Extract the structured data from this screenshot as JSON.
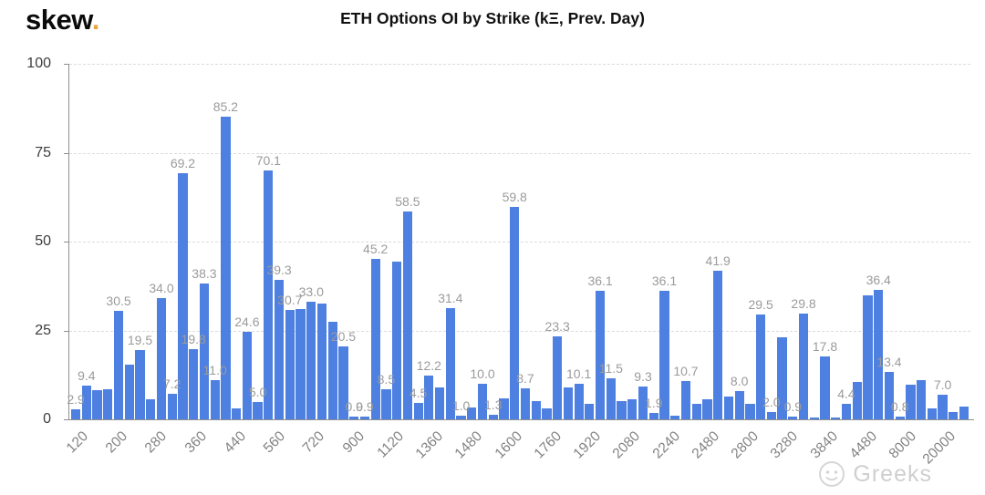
{
  "logo": {
    "brand": "skew",
    "dot": "."
  },
  "header": {
    "title": "ETH Options OI by Strike (kΞ, Prev. Day)"
  },
  "watermark": {
    "text": "Greeks",
    "icon": "face-icon"
  },
  "colors": {
    "bar": "#4e80e1",
    "grid": "#dcdcdc",
    "axis": "#8f8f8f",
    "value_label": "#9b9b9b",
    "x_tick_label": "#828282",
    "y_tick_label": "#3d3d3d",
    "logo_dot": "#eca53d",
    "title": "#111111"
  },
  "chart_data": {
    "type": "bar",
    "title": "ETH Options OI by Strike (kΞ, Prev. Day)",
    "xlabel": "",
    "ylabel": "",
    "ylim": [
      0,
      100
    ],
    "yticks": [
      0,
      25,
      50,
      75,
      100
    ],
    "grid": "horizontal-dashed",
    "legend": "none",
    "x_tick_labels": [
      "120",
      "200",
      "280",
      "360",
      "440",
      "560",
      "720",
      "900",
      "1120",
      "1360",
      "1480",
      "1600",
      "1760",
      "1920",
      "2080",
      "2240",
      "2480",
      "2800",
      "3280",
      "3840",
      "4480",
      "8000",
      "20000"
    ],
    "bars": [
      {
        "v": 2.9,
        "l": "2.9"
      },
      {
        "v": 9.4,
        "l": "9.4"
      },
      {
        "v": 8.2,
        "l": ""
      },
      {
        "v": 8.5,
        "l": ""
      },
      {
        "v": 30.5,
        "l": "30.5"
      },
      {
        "v": 15.5,
        "l": ""
      },
      {
        "v": 19.5,
        "l": "19.5"
      },
      {
        "v": 5.6,
        "l": ""
      },
      {
        "v": 34.0,
        "l": "34.0"
      },
      {
        "v": 7.2,
        "l": "7.2"
      },
      {
        "v": 69.2,
        "l": "69.2"
      },
      {
        "v": 19.8,
        "l": "19.8"
      },
      {
        "v": 38.3,
        "l": "38.3"
      },
      {
        "v": 11.0,
        "l": "11.0"
      },
      {
        "v": 85.2,
        "l": "85.2"
      },
      {
        "v": 3.2,
        "l": ""
      },
      {
        "v": 24.6,
        "l": "24.6"
      },
      {
        "v": 5.0,
        "l": "5.0"
      },
      {
        "v": 70.1,
        "l": "70.1"
      },
      {
        "v": 39.3,
        "l": "39.3"
      },
      {
        "v": 30.7,
        "l": "30.7"
      },
      {
        "v": 31.0,
        "l": ""
      },
      {
        "v": 33.0,
        "l": "33.0"
      },
      {
        "v": 32.5,
        "l": ""
      },
      {
        "v": 27.5,
        "l": ""
      },
      {
        "v": 20.5,
        "l": "20.5"
      },
      {
        "v": 0.9,
        "l": "0.9"
      },
      {
        "v": 0.9,
        "l": "0.9"
      },
      {
        "v": 45.2,
        "l": "45.2"
      },
      {
        "v": 8.5,
        "l": "8.5"
      },
      {
        "v": 44.3,
        "l": ""
      },
      {
        "v": 58.5,
        "l": "58.5"
      },
      {
        "v": 4.5,
        "l": "4.5"
      },
      {
        "v": 12.2,
        "l": "12.2"
      },
      {
        "v": 9.0,
        "l": ""
      },
      {
        "v": 31.4,
        "l": "31.4"
      },
      {
        "v": 1.0,
        "l": "1.0"
      },
      {
        "v": 3.4,
        "l": ""
      },
      {
        "v": 10.0,
        "l": "10.0"
      },
      {
        "v": 1.3,
        "l": "1.3"
      },
      {
        "v": 6.0,
        "l": ""
      },
      {
        "v": 59.8,
        "l": "59.8"
      },
      {
        "v": 8.7,
        "l": "8.7"
      },
      {
        "v": 5.1,
        "l": ""
      },
      {
        "v": 3.0,
        "l": ""
      },
      {
        "v": 23.3,
        "l": "23.3"
      },
      {
        "v": 9.0,
        "l": ""
      },
      {
        "v": 10.1,
        "l": "10.1"
      },
      {
        "v": 4.4,
        "l": ""
      },
      {
        "v": 36.1,
        "l": "36.1"
      },
      {
        "v": 11.5,
        "l": "11.5"
      },
      {
        "v": 5.1,
        "l": ""
      },
      {
        "v": 5.6,
        "l": ""
      },
      {
        "v": 9.3,
        "l": "9.3"
      },
      {
        "v": 1.9,
        "l": "1.9"
      },
      {
        "v": 36.1,
        "l": "36.1"
      },
      {
        "v": 1.0,
        "l": ""
      },
      {
        "v": 10.7,
        "l": "10.7"
      },
      {
        "v": 4.4,
        "l": ""
      },
      {
        "v": 5.6,
        "l": ""
      },
      {
        "v": 41.9,
        "l": "41.9"
      },
      {
        "v": 6.4,
        "l": ""
      },
      {
        "v": 8.0,
        "l": "8.0"
      },
      {
        "v": 4.4,
        "l": ""
      },
      {
        "v": 29.5,
        "l": "29.5"
      },
      {
        "v": 2.0,
        "l": "2.0"
      },
      {
        "v": 23.0,
        "l": ""
      },
      {
        "v": 0.9,
        "l": "0.9"
      },
      {
        "v": 29.8,
        "l": "29.8"
      },
      {
        "v": 0.5,
        "l": ""
      },
      {
        "v": 17.8,
        "l": "17.8"
      },
      {
        "v": 0.6,
        "l": ""
      },
      {
        "v": 4.4,
        "l": "4.4"
      },
      {
        "v": 10.5,
        "l": ""
      },
      {
        "v": 34.9,
        "l": ""
      },
      {
        "v": 36.4,
        "l": "36.4"
      },
      {
        "v": 13.4,
        "l": "13.4"
      },
      {
        "v": 0.8,
        "l": "0.8"
      },
      {
        "v": 9.7,
        "l": ""
      },
      {
        "v": 11.0,
        "l": ""
      },
      {
        "v": 3.0,
        "l": ""
      },
      {
        "v": 7.0,
        "l": "7.0"
      },
      {
        "v": 2.0,
        "l": ""
      },
      {
        "v": 3.5,
        "l": ""
      }
    ]
  }
}
